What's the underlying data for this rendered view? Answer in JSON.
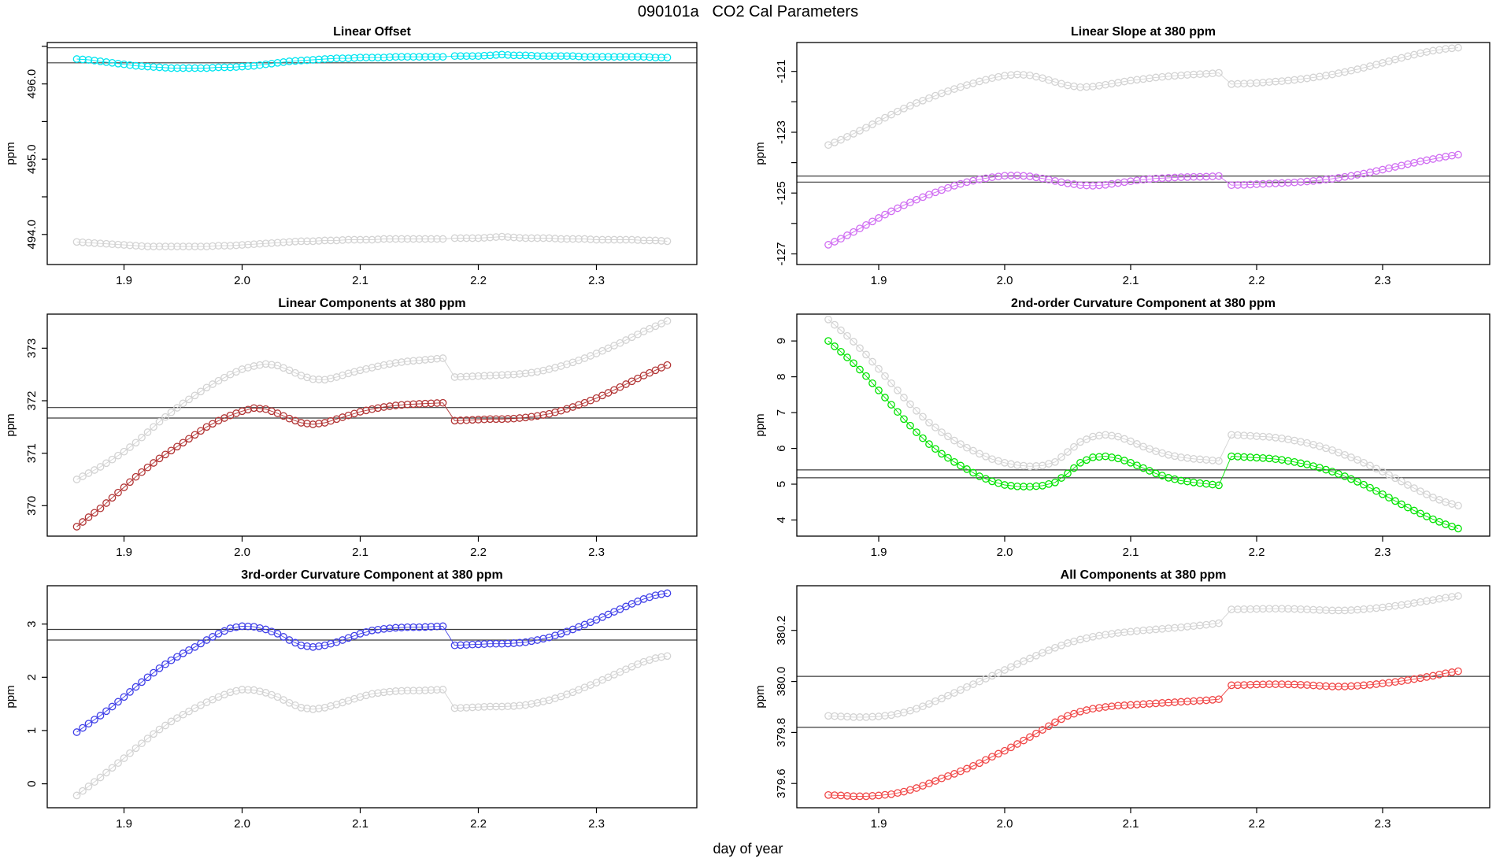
{
  "header": {
    "title": "090101a   CO2 Cal Parameters"
  },
  "footer": {
    "xlabel": "day of year"
  },
  "chart_data": {
    "type": "scatter",
    "title": "090101a   CO2 Cal Parameters",
    "xlabel": "day of year",
    "marker": "open-circle",
    "interpolate_midpoints": true,
    "jump_after_x": 2.17,
    "xlim": [
      1.835,
      2.385
    ],
    "xticks": [
      "1.9",
      "2.0",
      "2.1",
      "2.2",
      "2.3"
    ],
    "xtick_values": [
      1.9,
      2.0,
      2.1,
      2.2,
      2.3
    ],
    "x": [
      1.86,
      1.87,
      1.88,
      1.89,
      1.9,
      1.91,
      1.92,
      1.93,
      1.94,
      1.95,
      1.96,
      1.97,
      1.98,
      1.99,
      2.0,
      2.01,
      2.02,
      2.03,
      2.04,
      2.05,
      2.06,
      2.07,
      2.08,
      2.09,
      2.1,
      2.11,
      2.12,
      2.13,
      2.14,
      2.15,
      2.16,
      2.17,
      2.18,
      2.19,
      2.2,
      2.21,
      2.22,
      2.23,
      2.24,
      2.25,
      2.26,
      2.27,
      2.28,
      2.29,
      2.3,
      2.31,
      2.32,
      2.33,
      2.34,
      2.35,
      2.36
    ],
    "gray_color": "#D3D3D3",
    "refline_color": "#3C3C3C",
    "panels": [
      {
        "title": "Linear Offset",
        "ylabel": "ppm",
        "ylim": [
          493.6,
          496.55
        ],
        "yticks": [
          [
            494,
            "494.0"
          ],
          [
            495,
            "495.0"
          ],
          [
            496,
            "496.0"
          ]
        ],
        "minor_yticks": [
          494.5,
          495.5,
          496.5
        ],
        "ref_lines": [
          496.48,
          496.28
        ],
        "series": [
          {
            "name": "gray-reference",
            "color": "#D3D3D3",
            "values": [
              493.9,
              493.89,
              493.88,
              493.87,
              493.86,
              493.85,
              493.84,
              493.84,
              493.84,
              493.84,
              493.84,
              493.84,
              493.85,
              493.85,
              493.86,
              493.87,
              493.88,
              493.89,
              493.9,
              493.91,
              493.91,
              493.92,
              493.92,
              493.93,
              493.93,
              493.93,
              493.94,
              493.94,
              493.94,
              493.94,
              493.94,
              493.94,
              493.95,
              493.95,
              493.95,
              493.96,
              493.97,
              493.96,
              493.95,
              493.95,
              493.95,
              493.94,
              493.94,
              493.94,
              493.93,
              493.93,
              493.93,
              493.93,
              493.92,
              493.92,
              493.91
            ]
          },
          {
            "name": "cyan-offset",
            "color": "#00E5F0",
            "values": [
              496.33,
              496.32,
              496.3,
              496.28,
              496.26,
              496.24,
              496.23,
              496.22,
              496.21,
              496.21,
              496.21,
              496.21,
              496.22,
              496.22,
              496.23,
              496.24,
              496.26,
              496.28,
              496.3,
              496.31,
              496.32,
              496.33,
              496.34,
              496.34,
              496.35,
              496.35,
              496.35,
              496.36,
              496.36,
              496.36,
              496.36,
              496.36,
              496.37,
              496.37,
              496.37,
              496.38,
              496.39,
              496.38,
              496.38,
              496.37,
              496.37,
              496.37,
              496.37,
              496.36,
              496.36,
              496.36,
              496.36,
              496.36,
              496.36,
              496.35,
              496.35
            ]
          }
        ]
      },
      {
        "title": "Linear Slope at 380 ppm",
        "ylabel": "ppm",
        "ylim": [
          -127.35,
          -120.05
        ],
        "yticks": [
          [
            -127,
            "-127"
          ],
          [
            -125,
            "-125"
          ],
          [
            -123,
            "-123"
          ],
          [
            -121,
            "-121"
          ]
        ],
        "minor_yticks": [
          -126,
          -124,
          -122
        ],
        "ref_lines": [
          -124.44,
          -124.64
        ],
        "series": [
          {
            "name": "gray-reference",
            "color": "#D3D3D3",
            "values": [
              -123.42,
              -123.25,
              -123.05,
              -122.85,
              -122.63,
              -122.42,
              -122.22,
              -122.04,
              -121.88,
              -121.72,
              -121.58,
              -121.45,
              -121.33,
              -121.22,
              -121.14,
              -121.1,
              -121.13,
              -121.22,
              -121.35,
              -121.46,
              -121.52,
              -121.5,
              -121.44,
              -121.37,
              -121.3,
              -121.25,
              -121.2,
              -121.16,
              -121.13,
              -121.1,
              -121.08,
              -121.05,
              -121.42,
              -121.4,
              -121.38,
              -121.35,
              -121.32,
              -121.28,
              -121.23,
              -121.17,
              -121.1,
              -121.02,
              -120.93,
              -120.83,
              -120.72,
              -120.61,
              -120.5,
              -120.4,
              -120.32,
              -120.26,
              -120.22
            ]
          },
          {
            "name": "purple-slope",
            "color": "#D06EF2",
            "values": [
              -126.7,
              -126.5,
              -126.28,
              -126.05,
              -125.82,
              -125.6,
              -125.4,
              -125.22,
              -125.05,
              -124.9,
              -124.76,
              -124.64,
              -124.55,
              -124.48,
              -124.43,
              -124.42,
              -124.45,
              -124.52,
              -124.6,
              -124.68,
              -124.74,
              -124.76,
              -124.73,
              -124.67,
              -124.61,
              -124.56,
              -124.52,
              -124.5,
              -124.48,
              -124.47,
              -124.46,
              -124.44,
              -124.74,
              -124.73,
              -124.71,
              -124.69,
              -124.67,
              -124.65,
              -124.62,
              -124.58,
              -124.53,
              -124.47,
              -124.4,
              -124.32,
              -124.23,
              -124.14,
              -124.05,
              -123.96,
              -123.88,
              -123.8,
              -123.74
            ]
          }
        ]
      },
      {
        "title": "Linear Components at 380 ppm",
        "ylabel": "ppm",
        "ylim": [
          369.42,
          373.65
        ],
        "yticks": [
          [
            370,
            "370"
          ],
          [
            371,
            "371"
          ],
          [
            372,
            "372"
          ],
          [
            373,
            "373"
          ]
        ],
        "minor_yticks": [],
        "ref_lines": [
          371.87,
          371.67
        ],
        "series": [
          {
            "name": "gray-reference",
            "color": "#D3D3D3",
            "values": [
              370.5,
              370.62,
              370.74,
              370.88,
              371.03,
              371.2,
              371.4,
              371.6,
              371.78,
              371.95,
              372.1,
              372.25,
              372.38,
              372.5,
              372.6,
              372.66,
              372.7,
              372.67,
              372.58,
              372.48,
              372.41,
              372.4,
              372.45,
              372.52,
              372.58,
              372.63,
              372.68,
              372.72,
              372.75,
              372.77,
              372.79,
              372.81,
              372.45,
              372.46,
              372.47,
              372.48,
              372.49,
              372.5,
              372.52,
              372.55,
              372.6,
              372.66,
              372.73,
              372.81,
              372.9,
              373.0,
              373.1,
              373.21,
              373.32,
              373.42,
              373.52
            ]
          },
          {
            "name": "darkred-linear",
            "color": "#B23535",
            "values": [
              369.6,
              369.78,
              369.95,
              370.15,
              370.35,
              370.55,
              370.73,
              370.9,
              371.05,
              371.2,
              371.35,
              371.5,
              371.62,
              371.72,
              371.8,
              371.86,
              371.84,
              371.76,
              371.66,
              371.58,
              371.55,
              371.58,
              371.65,
              371.72,
              371.79,
              371.84,
              371.88,
              371.91,
              371.93,
              371.94,
              371.95,
              371.96,
              371.62,
              371.63,
              371.64,
              371.65,
              371.65,
              371.66,
              371.68,
              371.71,
              371.75,
              371.81,
              371.88,
              371.96,
              372.05,
              372.15,
              372.26,
              372.37,
              372.48,
              372.58,
              372.68
            ]
          }
        ]
      },
      {
        "title": "2nd-order Curvature Component at 380 ppm",
        "ylabel": "ppm",
        "ylim": [
          3.55,
          9.75
        ],
        "yticks": [
          [
            4,
            "4"
          ],
          [
            5,
            "5"
          ],
          [
            6,
            "6"
          ],
          [
            7,
            "7"
          ],
          [
            8,
            "8"
          ],
          [
            9,
            "9"
          ]
        ],
        "minor_yticks": [],
        "ref_lines": [
          5.4,
          5.18
        ],
        "series": [
          {
            "name": "gray-reference",
            "color": "#D3D3D3",
            "values": [
              9.6,
              9.3,
              8.98,
              8.62,
              8.22,
              7.82,
              7.42,
              7.05,
              6.72,
              6.45,
              6.22,
              6.02,
              5.85,
              5.7,
              5.6,
              5.53,
              5.5,
              5.52,
              5.62,
              5.9,
              6.18,
              6.33,
              6.38,
              6.33,
              6.2,
              6.05,
              5.92,
              5.82,
              5.75,
              5.71,
              5.68,
              5.65,
              6.38,
              6.36,
              6.34,
              6.32,
              6.28,
              6.22,
              6.15,
              6.06,
              5.95,
              5.82,
              5.68,
              5.52,
              5.35,
              5.17,
              4.98,
              4.8,
              4.63,
              4.5,
              4.4
            ]
          },
          {
            "name": "green-2nd-order",
            "color": "#00E300",
            "values": [
              9.0,
              8.7,
              8.38,
              8.02,
              7.62,
              7.22,
              6.82,
              6.45,
              6.12,
              5.85,
              5.62,
              5.42,
              5.22,
              5.08,
              4.98,
              4.94,
              4.93,
              4.96,
              5.05,
              5.3,
              5.6,
              5.75,
              5.78,
              5.72,
              5.6,
              5.45,
              5.3,
              5.18,
              5.1,
              5.05,
              5.01,
              4.97,
              5.78,
              5.76,
              5.74,
              5.72,
              5.68,
              5.62,
              5.55,
              5.46,
              5.35,
              5.22,
              5.07,
              4.9,
              4.72,
              4.53,
              4.35,
              4.18,
              4.02,
              3.88,
              3.76
            ]
          }
        ]
      },
      {
        "title": "3rd-order Curvature Component at 380 ppm",
        "ylabel": "ppm",
        "ylim": [
          -0.45,
          3.72
        ],
        "yticks": [
          [
            0,
            "0"
          ],
          [
            1,
            "1"
          ],
          [
            2,
            "2"
          ],
          [
            3,
            "3"
          ]
        ],
        "minor_yticks": [],
        "ref_lines": [
          2.9,
          2.7
        ],
        "series": [
          {
            "name": "gray-reference",
            "color": "#D3D3D3",
            "values": [
              -0.22,
              -0.05,
              0.12,
              0.3,
              0.48,
              0.67,
              0.85,
              1.02,
              1.17,
              1.3,
              1.42,
              1.53,
              1.63,
              1.72,
              1.77,
              1.76,
              1.71,
              1.63,
              1.52,
              1.43,
              1.4,
              1.43,
              1.49,
              1.56,
              1.63,
              1.69,
              1.72,
              1.74,
              1.75,
              1.75,
              1.76,
              1.77,
              1.42,
              1.43,
              1.44,
              1.45,
              1.45,
              1.46,
              1.48,
              1.52,
              1.57,
              1.64,
              1.72,
              1.81,
              1.9,
              2.0,
              2.1,
              2.2,
              2.29,
              2.36,
              2.4
            ]
          },
          {
            "name": "blue-3rd-order",
            "color": "#4040E8",
            "values": [
              0.97,
              1.13,
              1.28,
              1.45,
              1.63,
              1.82,
              2.0,
              2.17,
              2.32,
              2.45,
              2.57,
              2.7,
              2.82,
              2.92,
              2.96,
              2.95,
              2.9,
              2.82,
              2.7,
              2.6,
              2.57,
              2.6,
              2.66,
              2.74,
              2.82,
              2.88,
              2.91,
              2.93,
              2.94,
              2.94,
              2.95,
              2.96,
              2.6,
              2.61,
              2.62,
              2.63,
              2.63,
              2.64,
              2.66,
              2.7,
              2.75,
              2.82,
              2.9,
              2.99,
              3.08,
              3.18,
              3.28,
              3.38,
              3.47,
              3.54,
              3.58
            ]
          }
        ]
      },
      {
        "title": "All Components at 380 ppm",
        "ylabel": "ppm",
        "ylim": [
          379.505,
          380.375
        ],
        "yticks": [
          [
            379.6,
            "379.6"
          ],
          [
            379.8,
            "379.8"
          ],
          [
            380.0,
            "380.0"
          ],
          [
            380.2,
            "380.2"
          ]
        ],
        "minor_yticks": [],
        "ref_lines": [
          380.02,
          379.82
        ],
        "series": [
          {
            "name": "gray-reference",
            "color": "#D3D3D3",
            "values": [
              379.865,
              379.863,
              379.86,
              379.86,
              379.863,
              379.868,
              379.878,
              379.893,
              379.912,
              379.933,
              379.955,
              379.978,
              380.0,
              380.022,
              380.045,
              380.068,
              380.09,
              380.112,
              380.132,
              380.15,
              380.164,
              380.175,
              380.183,
              380.19,
              380.195,
              380.2,
              380.204,
              380.208,
              380.212,
              380.217,
              380.222,
              380.228,
              380.282,
              380.283,
              380.284,
              380.285,
              380.285,
              380.284,
              380.282,
              380.28,
              380.278,
              380.278,
              380.281,
              380.285,
              380.29,
              380.296,
              380.303,
              380.311,
              380.319,
              380.328,
              380.335
            ]
          },
          {
            "name": "red-all-components",
            "color": "#F04545",
            "values": [
              379.555,
              379.553,
              379.55,
              379.55,
              379.553,
              379.558,
              379.568,
              379.582,
              379.6,
              379.62,
              379.638,
              379.658,
              379.68,
              379.705,
              379.728,
              379.755,
              379.782,
              379.81,
              379.84,
              379.865,
              379.882,
              379.893,
              379.9,
              379.905,
              379.908,
              379.911,
              379.914,
              379.917,
              379.92,
              379.923,
              379.926,
              379.93,
              379.985,
              379.986,
              379.988,
              379.989,
              379.989,
              379.988,
              379.986,
              379.983,
              379.98,
              379.98,
              379.983,
              379.987,
              379.992,
              379.998,
              380.005,
              380.013,
              380.022,
              380.032,
              380.04
            ]
          }
        ]
      }
    ]
  }
}
